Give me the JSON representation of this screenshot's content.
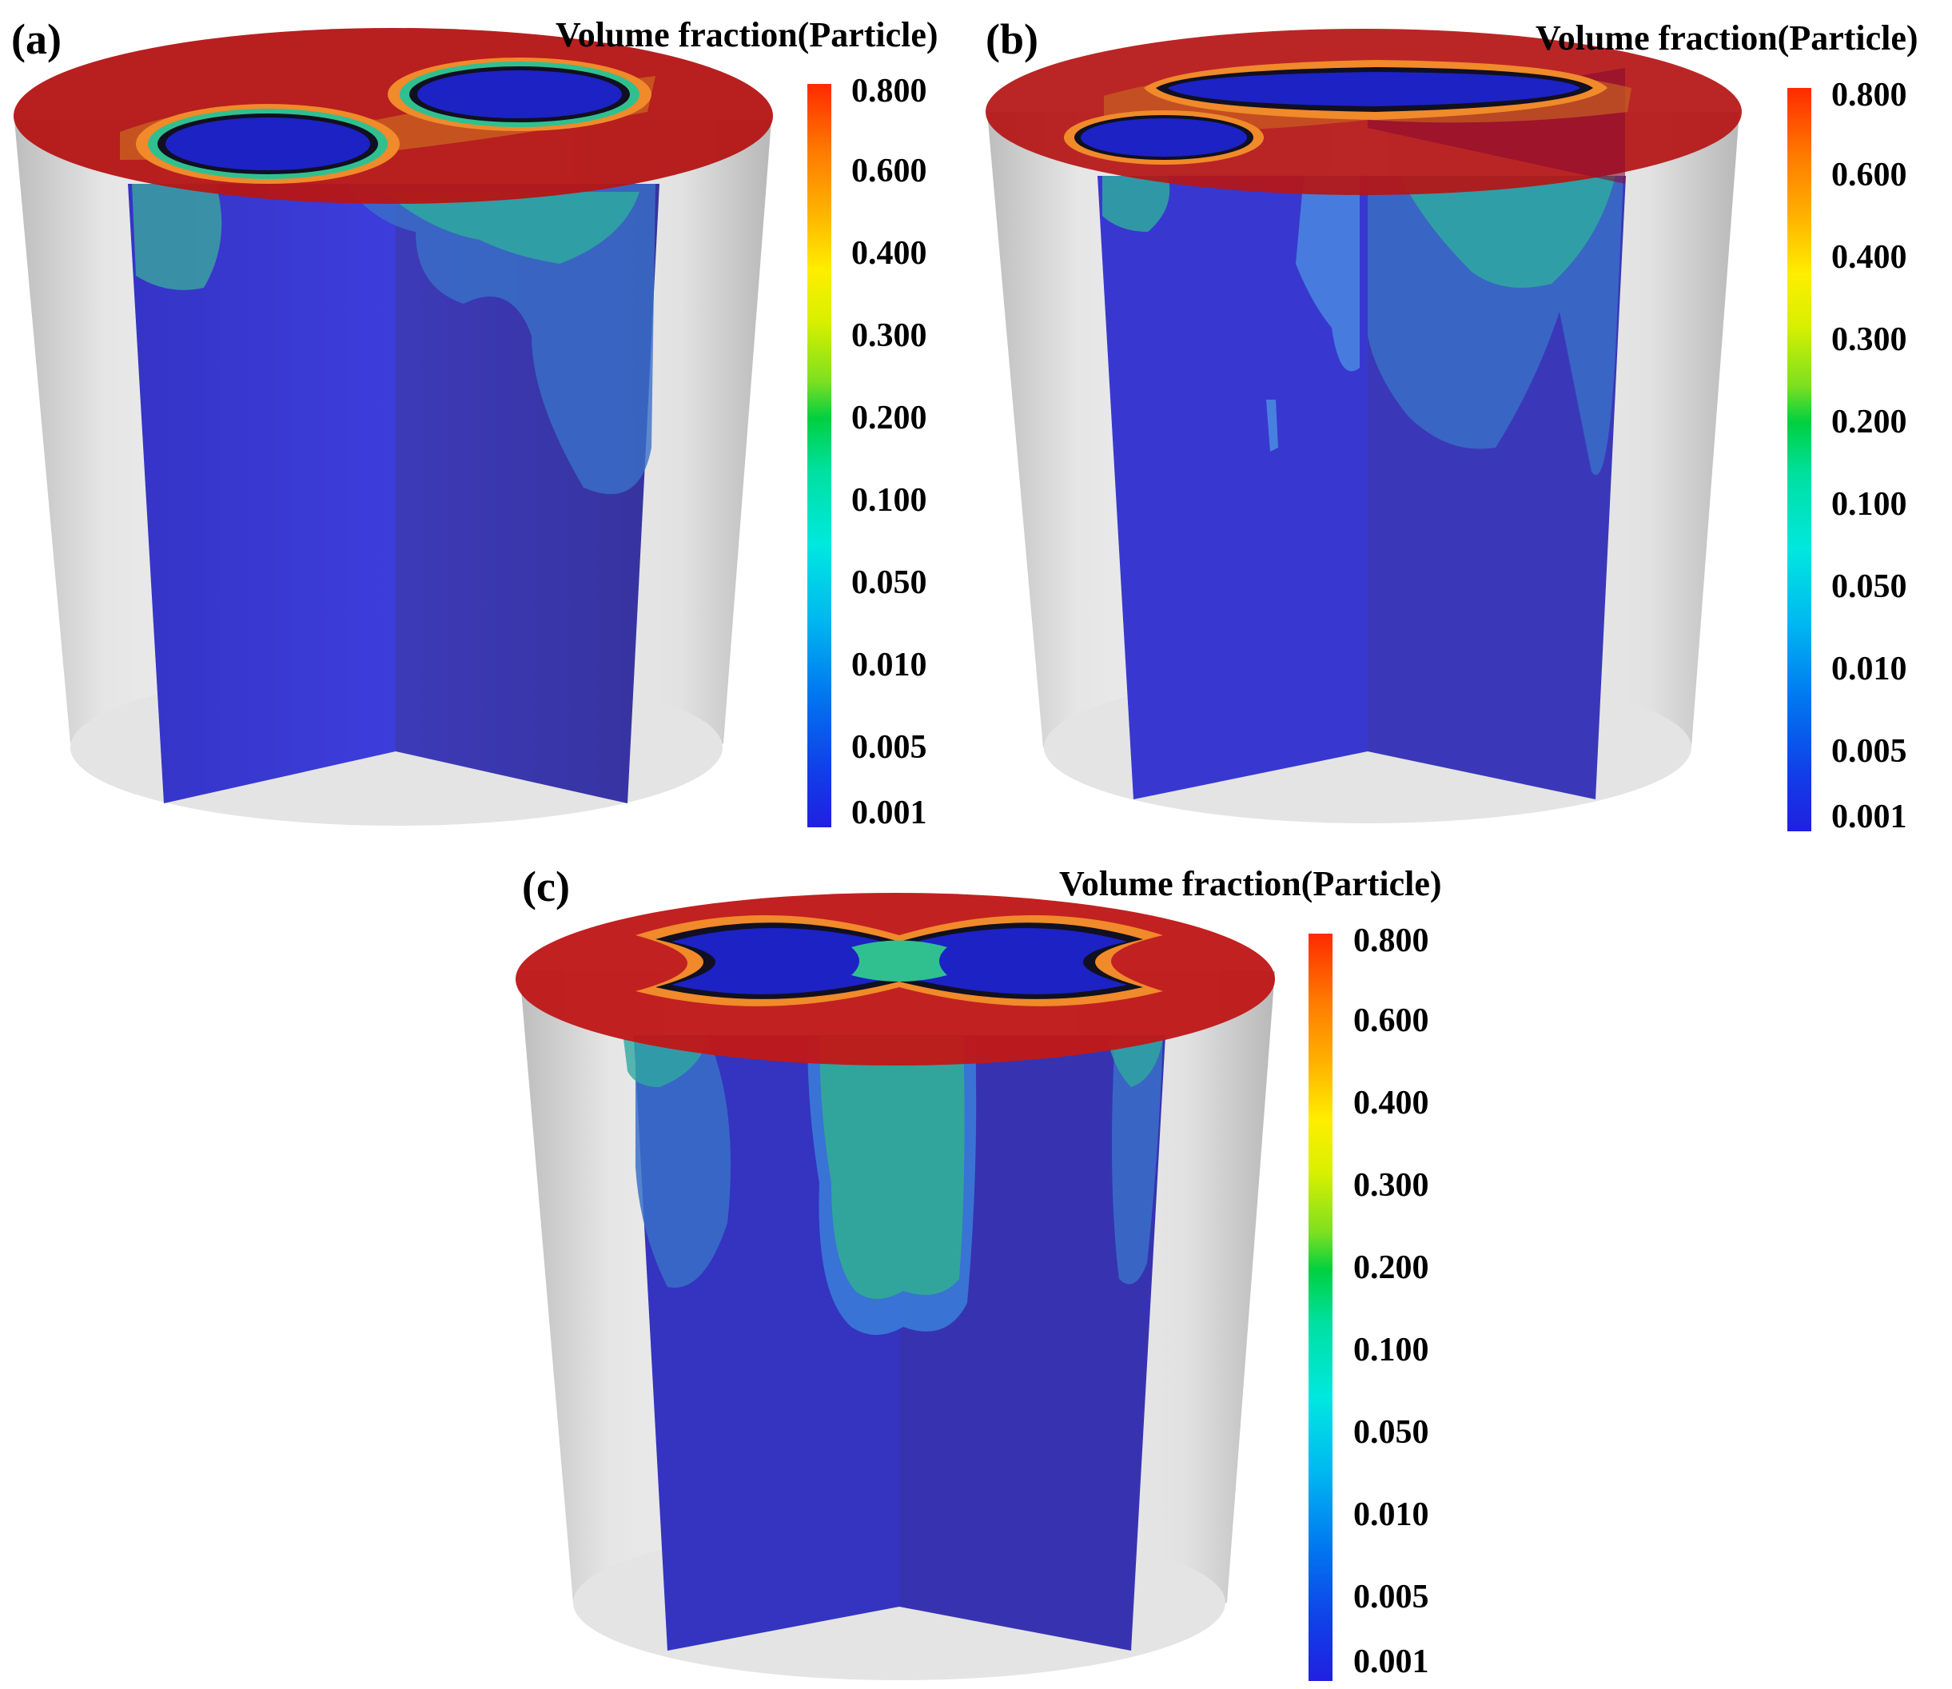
{
  "figure": {
    "panels": [
      {
        "label": "(a)",
        "legend_title": "Volume fraction(Particle)",
        "colorbar_ticks": [
          "0.800",
          "0.600",
          "0.400",
          "0.300",
          "0.200",
          "0.100",
          "0.050",
          "0.010",
          "0.005",
          "0.001"
        ]
      },
      {
        "label": "(b)",
        "legend_title": "Volume fraction(Particle)",
        "colorbar_ticks": [
          "0.800",
          "0.600",
          "0.400",
          "0.300",
          "0.200",
          "0.100",
          "0.050",
          "0.010",
          "0.005",
          "0.001"
        ]
      },
      {
        "label": "(c)",
        "legend_title": "Volume fraction(Particle)",
        "colorbar_ticks": [
          "0.800",
          "0.600",
          "0.400",
          "0.300",
          "0.200",
          "0.100",
          "0.050",
          "0.010",
          "0.005",
          "0.001"
        ]
      }
    ],
    "colors": {
      "top_surface": "#b81414",
      "slice_base": "#3a3ad0",
      "plume_light": "#3a7ad8",
      "plume_teal": "#2fa89a",
      "vessel_wall": "#c8c8c8",
      "hole": "#1e22c8"
    }
  }
}
